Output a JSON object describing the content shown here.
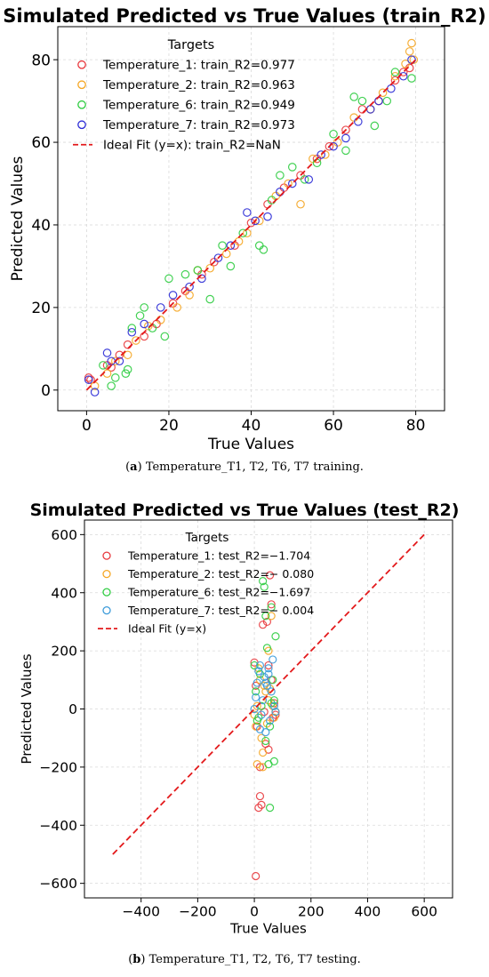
{
  "figures": [
    {
      "title": "Simulated Predicted vs True Values (train_R2)",
      "caption_tag": "a",
      "caption_text": "Temperature_T1, T2, T6, T7 training.",
      "legend_title": "Targets",
      "legend_placement": "top-left"
    },
    {
      "title": "Simulated Predicted vs True Values (test_R2)",
      "caption_tag": "b",
      "caption_text": "Temperature_T1, T2, T6, T7 testing.",
      "legend_title": "Targets",
      "legend_placement": "top-left"
    }
  ],
  "chart_data": [
    {
      "type": "scatter",
      "title": "Simulated Predicted vs True Values (train_R2)",
      "xlabel": "True Values",
      "ylabel": "Predicted Values",
      "xlim": [
        -7,
        87
      ],
      "ylim": [
        -5,
        88
      ],
      "xticks": [
        0,
        20,
        40,
        60,
        80
      ],
      "yticks": [
        0,
        20,
        40,
        60,
        80
      ],
      "grid": true,
      "legend_title": "Targets",
      "series": [
        {
          "name": "Temperature_1: train_R2=0.977",
          "color": "#e8383d",
          "x": [
            0.5,
            1,
            5,
            6,
            8,
            10,
            14,
            17,
            21,
            24,
            28,
            31,
            36,
            40,
            44,
            48,
            52,
            56,
            59,
            63,
            67,
            71,
            75,
            77,
            78.5
          ],
          "y": [
            3,
            2.5,
            6,
            5.5,
            8.5,
            11,
            13,
            16,
            21,
            24,
            28,
            31,
            35,
            40.5,
            45,
            49,
            52,
            56,
            59,
            63,
            68,
            70,
            75,
            77,
            78
          ]
        },
        {
          "name": "Temperature_2: train_R2=0.963",
          "color": "#f5a623",
          "x": [
            2,
            5,
            7,
            10,
            12,
            15,
            18,
            22,
            25,
            27,
            30,
            34,
            37,
            39,
            42,
            46,
            49,
            52,
            55,
            58,
            61,
            65,
            69,
            72,
            75,
            77.5,
            78.5,
            79,
            79.5
          ],
          "y": [
            1,
            4,
            7,
            8.5,
            12,
            15.5,
            17,
            20,
            23,
            29,
            29.5,
            33,
            36,
            38,
            41,
            47,
            50,
            45,
            56,
            57,
            60,
            66,
            68,
            72,
            76,
            79,
            82,
            84,
            80
          ]
        },
        {
          "name": "Temperature_6: train_R2=0.949",
          "color": "#2ecc40",
          "x": [
            4,
            6,
            7,
            9.5,
            10,
            11,
            13,
            14,
            16,
            19,
            20,
            24,
            27,
            30,
            33,
            35,
            38,
            42,
            43,
            45,
            47,
            50,
            53,
            56,
            60,
            63,
            65,
            67,
            70,
            73,
            75,
            79
          ],
          "y": [
            6,
            1,
            3,
            4,
            5,
            15,
            18,
            20,
            15,
            13,
            27,
            28,
            29,
            22,
            35,
            30,
            38,
            35,
            34,
            46,
            52,
            54,
            51,
            55,
            62,
            58,
            71,
            70,
            64,
            70,
            77,
            75.5
          ]
        },
        {
          "name": "Temperature_7: train_R2=0.973",
          "color": "#2b2bd6",
          "x": [
            0.5,
            2,
            5,
            6,
            8,
            11,
            14,
            18,
            21,
            25,
            28,
            32,
            35,
            39,
            41,
            44,
            47,
            50,
            54,
            57,
            60,
            63,
            66,
            69,
            71,
            74,
            77,
            79
          ],
          "y": [
            2.5,
            -0.5,
            9,
            7,
            7,
            14,
            16,
            20,
            23,
            25,
            27,
            32,
            35,
            43,
            41,
            42,
            48,
            50,
            51,
            57,
            59,
            61,
            65,
            68,
            70,
            73,
            76,
            80
          ]
        },
        {
          "name": "Ideal Fit (y=x): train_R2=NaN",
          "color": "#e31a1c",
          "style": "dashed",
          "x": [
            0,
            80
          ],
          "y": [
            0,
            80
          ]
        }
      ]
    },
    {
      "type": "scatter",
      "title": "Simulated Predicted vs True Values (test_R2)",
      "xlabel": "True Values",
      "ylabel": "Predicted Values",
      "xlim": [
        -600,
        700
      ],
      "ylim": [
        -650,
        650
      ],
      "xticks": [
        -400,
        -200,
        0,
        200,
        400,
        600
      ],
      "yticks": [
        -600,
        -400,
        -200,
        0,
        200,
        400,
        600
      ],
      "grid": true,
      "legend_title": "Targets",
      "series": [
        {
          "name": "Temperature_1: test_R2=−1.704",
          "color": "#e8383d",
          "x": [
            5,
            15,
            20,
            25,
            40,
            50,
            55,
            60,
            70,
            10,
            0,
            5,
            30,
            45,
            65,
            75,
            20,
            50,
            35,
            60
          ],
          "y": [
            -575,
            -340,
            -300,
            -330,
            -120,
            -140,
            460,
            360,
            20,
            -60,
            160,
            80,
            290,
            300,
            -30,
            -20,
            -200,
            150,
            -10,
            100
          ]
        },
        {
          "name": "Temperature_2: test_R2=− 0.080",
          "color": "#f5a623",
          "x": [
            0,
            10,
            20,
            30,
            40,
            50,
            60,
            70,
            5,
            15,
            25,
            35,
            45,
            55,
            65,
            75,
            10,
            30,
            50
          ],
          "y": [
            -20,
            10,
            100,
            -200,
            60,
            30,
            320,
            -30,
            -60,
            140,
            -100,
            80,
            -50,
            70,
            10,
            -10,
            -190,
            -150,
            200
          ]
        },
        {
          "name": "Temperature_6: test_R2=−1.697",
          "color": "#2ecc40",
          "x": [
            0,
            5,
            10,
            20,
            25,
            30,
            35,
            40,
            45,
            50,
            55,
            60,
            65,
            70,
            75,
            15,
            40,
            55,
            60,
            70
          ],
          "y": [
            150,
            60,
            -40,
            120,
            10,
            440,
            420,
            320,
            210,
            -190,
            -340,
            350,
            100,
            -180,
            250,
            -30,
            -110,
            -60,
            20,
            30
          ]
        },
        {
          "name": "Temperature_7: test_R2=− 0.004",
          "color": "#3a9ad9",
          "x": [
            0,
            5,
            10,
            15,
            20,
            25,
            30,
            35,
            40,
            45,
            50,
            55,
            60,
            65,
            70,
            75,
            20,
            40,
            50
          ],
          "y": [
            0,
            40,
            90,
            130,
            150,
            -20,
            30,
            110,
            -80,
            80,
            120,
            -40,
            60,
            170,
            10,
            -10,
            -70,
            90,
            140
          ]
        },
        {
          "name": "Ideal Fit (y=x)",
          "color": "#e31a1c",
          "style": "dashed",
          "x": [
            -500,
            600
          ],
          "y": [
            -500,
            600
          ]
        }
      ]
    }
  ]
}
